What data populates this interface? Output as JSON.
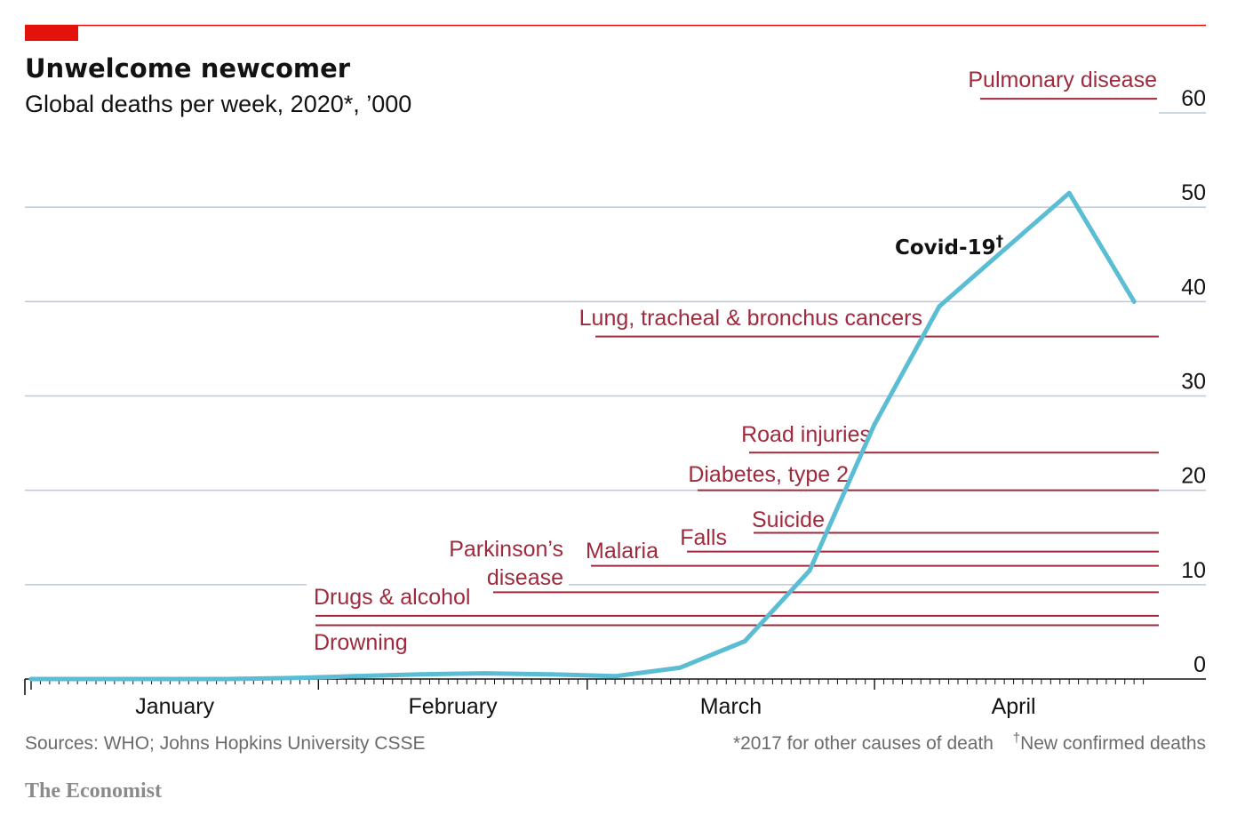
{
  "header": {
    "title": "Unwelcome newcomer",
    "subtitle": "Global deaths per week, 2020*, ’000"
  },
  "chart_data": {
    "type": "line",
    "title": "Unwelcome newcomer",
    "subtitle": "Global deaths per week, 2020*, ’000",
    "ylim": [
      0,
      60
    ],
    "yticks": [
      "0",
      "10",
      "20",
      "30",
      "40",
      "50",
      "60"
    ],
    "x_tick_labels": [
      "January",
      "February",
      "March",
      "April"
    ],
    "grid": true,
    "series": [
      {
        "name": "Covid-19",
        "label": "Covid-19",
        "label_marker": "†",
        "color": "#5bbdd3",
        "x": [
          "Jan 1",
          "Jan 22",
          "Jan 29",
          "Feb 5",
          "Feb 12",
          "Feb 19",
          "Feb 26",
          "Mar 4",
          "Mar 11",
          "Mar 18",
          "Mar 25",
          "Apr 1",
          "Apr 8",
          "Apr 15",
          "Apr 22",
          "Apr 29"
        ],
        "values": [
          0,
          0,
          0.1,
          0.3,
          0.5,
          0.6,
          0.5,
          0.3,
          1.2,
          4,
          11.5,
          27,
          39.5,
          45.5,
          51.5,
          40
        ]
      }
    ],
    "reference_lines": [
      {
        "name": "Pulmonary disease",
        "value": 61.5
      },
      {
        "name": "Lung, tracheal & bronchus cancers",
        "value": 36.3
      },
      {
        "name": "Road injuries",
        "value": 24
      },
      {
        "name": "Diabetes, type 2",
        "value": 20
      },
      {
        "name": "Suicide",
        "value": 15.5
      },
      {
        "name": "Falls",
        "value": 13.5
      },
      {
        "name": "Malaria",
        "value": 12
      },
      {
        "name": "Parkinson’s disease",
        "value": 9.2
      },
      {
        "name": "Drugs & alcohol",
        "value": 6.7
      },
      {
        "name": "Drowning",
        "value": 5.7
      }
    ],
    "colors": {
      "covid_line": "#5bbdd3",
      "reference_lines": "#a02a3d",
      "gridlines": "#b9c9d9",
      "accent_bar": "#e3120b",
      "top_rule": "#e3120b"
    }
  },
  "footer": {
    "sources": "Sources: WHO; Johns Hopkins University CSSE",
    "note1": "*2017 for other causes of death",
    "note2_marker": "†",
    "note2": "New confirmed deaths",
    "brand": "The Economist"
  }
}
